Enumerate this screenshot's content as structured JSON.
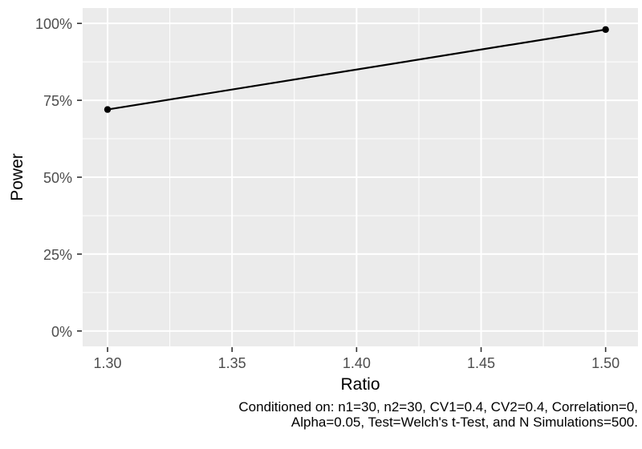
{
  "chart_data": {
    "type": "line",
    "title": "",
    "xlabel": "Ratio",
    "ylabel": "Power",
    "x": [
      1.3,
      1.5
    ],
    "values": [
      0.72,
      0.98
    ],
    "value_format": "percent",
    "xlim": [
      1.29,
      1.513
    ],
    "ylim": [
      -0.05,
      1.05
    ],
    "x_ticks": [
      {
        "value": 1.3,
        "label": "1.30"
      },
      {
        "value": 1.35,
        "label": "1.35"
      },
      {
        "value": 1.4,
        "label": "1.40"
      },
      {
        "value": 1.45,
        "label": "1.45"
      },
      {
        "value": 1.5,
        "label": "1.50"
      }
    ],
    "y_ticks": [
      {
        "value": 0.0,
        "label": "0%"
      },
      {
        "value": 0.25,
        "label": "25%"
      },
      {
        "value": 0.5,
        "label": "50%"
      },
      {
        "value": 0.75,
        "label": "75%"
      },
      {
        "value": 1.0,
        "label": "100%"
      }
    ],
    "x_minor_ticks": [
      1.325,
      1.375,
      1.425,
      1.475
    ],
    "y_minor_ticks": [
      0.125,
      0.375,
      0.625,
      0.875
    ],
    "grid": true,
    "legend": "none",
    "caption_lines": [
      "Conditioned on: n1=30, n2=30, CV1=0.4, CV2=0.4, Correlation=0,",
      "Alpha=0.05, Test=Welch's t-Test, and N Simulations=500."
    ],
    "colors": {
      "panel_bg": "#EBEBEB",
      "grid": "#FFFFFF",
      "line": "#000000",
      "point": "#000000",
      "tick_label": "#4D4D4D",
      "tick_mark": "#333333",
      "axis_title": "#000000",
      "caption": "#000000"
    }
  }
}
